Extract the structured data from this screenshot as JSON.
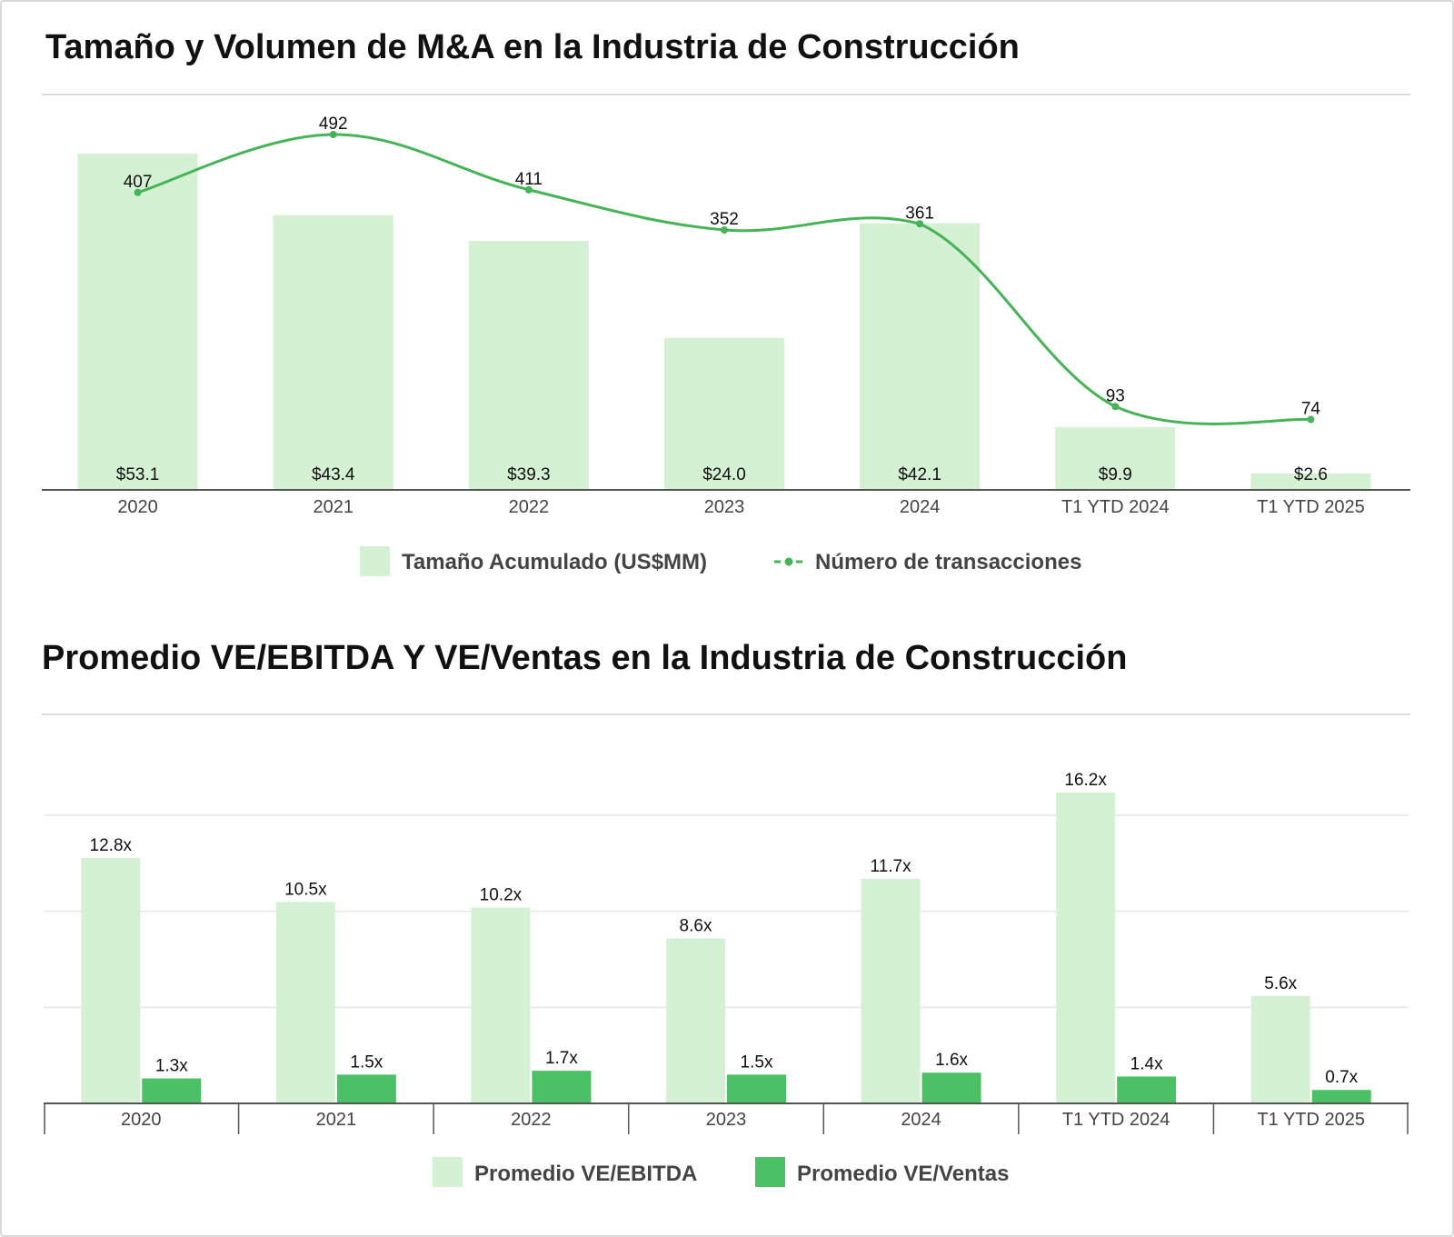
{
  "colors": {
    "light_green": "#d4f1d4",
    "dark_green": "#4cc064",
    "line_green": "#46b356",
    "axis": "#555555",
    "divider": "#dddddd",
    "grid": "#e6e6e6"
  },
  "chart_data": [
    {
      "type": "bar",
      "title": "Tamaño y Volumen de M&A en la Industria de Construcción",
      "categories": [
        "2020",
        "2021",
        "2022",
        "2023",
        "2024",
        "T1 YTD 2024",
        "T1 YTD 2025"
      ],
      "series": [
        {
          "name": "Tamaño Acumulado (US$MM)",
          "kind": "bar",
          "values": [
            53.1,
            43.4,
            39.3,
            24.0,
            42.1,
            9.9,
            2.6
          ],
          "labels": [
            "$53.1",
            "$43.4",
            "$39.3",
            "$24.0",
            "$42.1",
            "$9.9",
            "$2.6"
          ]
        },
        {
          "name": "Número de transacciones",
          "kind": "line",
          "values": [
            407,
            492,
            411,
            352,
            361,
            93,
            74
          ],
          "labels": [
            "407",
            "492",
            "411",
            "352",
            "361",
            "93",
            "74"
          ]
        }
      ],
      "grid": false,
      "legend": "bottom-center"
    },
    {
      "type": "bar",
      "title": "Promedio VE/EBITDA Y VE/Ventas en la Industria de Construcción",
      "categories": [
        "2020",
        "2021",
        "2022",
        "2023",
        "2024",
        "T1 YTD 2024",
        "T1 YTD 2025"
      ],
      "series": [
        {
          "name": "Promedio VE/EBITDA",
          "values": [
            12.8,
            10.5,
            10.2,
            8.6,
            11.7,
            16.2,
            5.6
          ],
          "labels": [
            "12.8x",
            "10.5x",
            "10.2x",
            "8.6x",
            "11.7x",
            "16.2x",
            "5.6x"
          ]
        },
        {
          "name": "Promedio VE/Ventas",
          "values": [
            1.3,
            1.5,
            1.7,
            1.5,
            1.6,
            1.4,
            0.7
          ],
          "labels": [
            "1.3x",
            "1.5x",
            "1.7x",
            "1.5x",
            "1.6x",
            "1.4x",
            "0.7x"
          ]
        }
      ],
      "grid": true,
      "legend": "bottom-center"
    }
  ]
}
